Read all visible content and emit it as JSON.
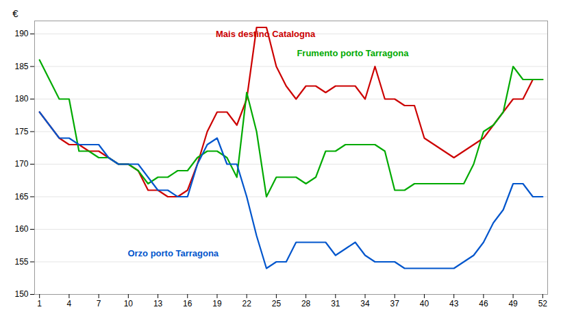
{
  "chart_data": {
    "type": "line",
    "x": [
      1,
      2,
      3,
      4,
      5,
      6,
      7,
      8,
      9,
      10,
      11,
      12,
      13,
      14,
      15,
      16,
      17,
      18,
      19,
      20,
      21,
      22,
      23,
      24,
      25,
      26,
      27,
      28,
      29,
      30,
      31,
      32,
      33,
      34,
      35,
      36,
      37,
      38,
      39,
      40,
      41,
      42,
      43,
      44,
      45,
      46,
      47,
      48,
      49,
      50,
      51,
      52
    ],
    "series": [
      {
        "name": "Mais destino Catalogna",
        "color": "#cc0000",
        "values": [
          178,
          176,
          174,
          173,
          173,
          172,
          172,
          171,
          170,
          170,
          169,
          166,
          166,
          165,
          165,
          166,
          170,
          175,
          178,
          178,
          176,
          180,
          191,
          191,
          185,
          182,
          180,
          182,
          182,
          181,
          182,
          182,
          182,
          180,
          185,
          180,
          180,
          179,
          179,
          174,
          173,
          172,
          171,
          172,
          173,
          174,
          176,
          178,
          180,
          180,
          183,
          183
        ]
      },
      {
        "name": "Frumento porto Tarragona",
        "color": "#00aa00",
        "values": [
          186,
          183,
          180,
          180,
          172,
          172,
          171,
          171,
          170,
          170,
          169,
          167,
          168,
          168,
          169,
          169,
          171,
          172,
          172,
          171,
          168,
          181,
          175,
          165,
          168,
          168,
          168,
          167,
          168,
          172,
          172,
          173,
          173,
          173,
          173,
          172,
          166,
          166,
          167,
          167,
          167,
          167,
          167,
          167,
          170,
          175,
          176,
          178,
          185,
          183,
          183,
          183
        ]
      },
      {
        "name": "Orzo porto Tarragona",
        "color": "#0055cc",
        "values": [
          178,
          176,
          174,
          174,
          173,
          173,
          173,
          171,
          170,
          170,
          170,
          168,
          166,
          166,
          165,
          165,
          170,
          173,
          174,
          170,
          170,
          165,
          159,
          154,
          155,
          155,
          158,
          158,
          158,
          158,
          156,
          157,
          158,
          156,
          155,
          155,
          155,
          154,
          154,
          154,
          154,
          154,
          154,
          155,
          156,
          158,
          161,
          163,
          167,
          167,
          165,
          165
        ]
      }
    ],
    "ylabel": "€",
    "xlim": [
      0.5,
      52.5
    ],
    "ylim": [
      150,
      192
    ],
    "xticks": [
      1,
      4,
      7,
      10,
      13,
      16,
      19,
      22,
      25,
      28,
      31,
      34,
      37,
      40,
      43,
      46,
      49,
      52
    ],
    "yticks": [
      150,
      155,
      160,
      165,
      170,
      175,
      180,
      185,
      190
    ],
    "grid": true
  }
}
